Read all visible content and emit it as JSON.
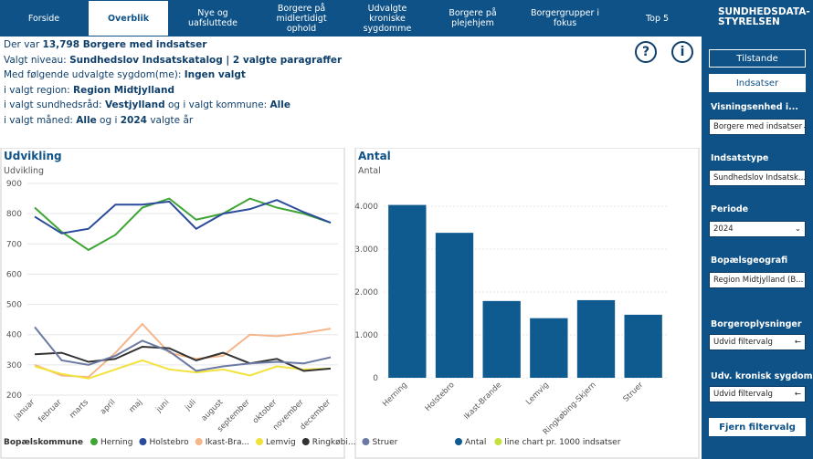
{
  "nav": {
    "tabs": [
      "Forside",
      "Overblik",
      "Nye og uafsluttede",
      "Borgere på midlertidigt ophold",
      "Udvalgte kroniske sygdomme",
      "Borgere på plejehjem",
      "Borgergrupper i fokus",
      "Top 5"
    ],
    "active": 1
  },
  "logo": {
    "line1": "SUNDHEDSDATA-",
    "line2": "STYRELSEN"
  },
  "info": {
    "lines": [
      [
        {
          "text": "Der var "
        },
        {
          "text": "13,798 Borgere med indsatser",
          "bold": true
        }
      ],
      [
        {
          "text": "Valgt niveau: "
        },
        {
          "text": "Sundhedslov Indsatskatalog | 2 valgte paragraffer",
          "bold": true
        }
      ],
      [
        {
          "text": "Med følgende udvalgte sygdom(me): "
        },
        {
          "text": "Ingen valgt",
          "bold": true
        }
      ],
      [
        {
          "text": "i valgt region: "
        },
        {
          "text": "Region Midtjylland",
          "bold": true
        }
      ],
      [
        {
          "text": "i valgt sundhedsråd: "
        },
        {
          "text": "Vestjylland",
          "bold": true
        },
        {
          "text": " og i valgt kommune: "
        },
        {
          "text": "Alle",
          "bold": true
        }
      ],
      [
        {
          "text": "i valgt måned: "
        },
        {
          "text": "Alle",
          "bold": true
        },
        {
          "text": " og i "
        },
        {
          "text": "2024",
          "bold": true
        },
        {
          "text": " valgte år"
        }
      ]
    ]
  },
  "icons": {
    "help": "?",
    "info": "i"
  },
  "sidebar": {
    "buttons": [
      "Tilstande",
      "Indsatser"
    ],
    "filters": [
      {
        "label": "Visningsenhed i...",
        "value": "Borgere med indsatser"
      },
      {
        "label": "Indsatstype",
        "value": "Sundhedslov Indsatsk..."
      },
      {
        "label": "Periode",
        "value": "2024"
      },
      {
        "label": "Bopælsgeografi",
        "value": "Region Midtjylland (B..."
      }
    ],
    "expanders": [
      {
        "label": "Borgeroplysninger",
        "value": "Udvid filtervalg"
      },
      {
        "label": "Udv. kronisk sygdom",
        "value": "Udvid filtervalg"
      }
    ],
    "reset": "Fjern filtervalg"
  },
  "chart_data": [
    {
      "type": "line",
      "title": "Udvikling",
      "subtitle": "Udvikling",
      "legend_title": "Bopælskommune",
      "categories": [
        "januar",
        "februar",
        "marts",
        "april",
        "maj",
        "juni",
        "juli",
        "august",
        "september",
        "oktober",
        "november",
        "december"
      ],
      "series": [
        {
          "name": "Herning",
          "color": "#3fa535",
          "values": [
            820,
            740,
            680,
            730,
            820,
            850,
            780,
            800,
            850,
            820,
            800,
            770
          ]
        },
        {
          "name": "Holstebro",
          "color": "#2b4c9b",
          "values": [
            790,
            735,
            750,
            830,
            830,
            840,
            750,
            800,
            815,
            845,
            805,
            770
          ]
        },
        {
          "name": "Ikast-Bra...",
          "color": "#f4b68a",
          "values": [
            300,
            265,
            260,
            340,
            435,
            340,
            320,
            330,
            400,
            395,
            405,
            420
          ]
        },
        {
          "name": "Lemvig",
          "color": "#f2e23c",
          "values": [
            295,
            270,
            255,
            285,
            315,
            285,
            275,
            285,
            265,
            295,
            285,
            288
          ]
        },
        {
          "name": "Ringkøbi...",
          "color": "#333333",
          "values": [
            335,
            340,
            310,
            320,
            360,
            355,
            315,
            340,
            305,
            320,
            280,
            288
          ]
        },
        {
          "name": "Struer",
          "color": "#6b7aa3",
          "values": [
            425,
            315,
            300,
            330,
            380,
            345,
            280,
            295,
            305,
            310,
            305,
            325
          ]
        }
      ],
      "ylim": [
        200,
        900
      ],
      "yticks": [
        200,
        300,
        400,
        500,
        600,
        700,
        800,
        900
      ],
      "grid": true
    },
    {
      "type": "bar",
      "title": "Antal",
      "subtitle": "Antal",
      "categories": [
        "Herning",
        "Holstebro",
        "Ikast-Brande",
        "Lemvig",
        "Ringkøbing-Skjern",
        "Struer"
      ],
      "series": [
        {
          "name": "Antal",
          "color": "#0f5a8e",
          "values": [
            4030,
            3380,
            1790,
            1390,
            1810,
            1470
          ]
        },
        {
          "name": "line chart pr. 1000 indsatser",
          "color": "#c8e03c",
          "values": [
            null,
            null,
            null,
            null,
            null,
            null
          ]
        }
      ],
      "ylim": [
        0,
        4500
      ],
      "yticks": [
        0,
        {
          "value": 1000,
          "label": "1.000"
        },
        {
          "value": 2000,
          "label": "2.000"
        },
        {
          "value": 3000,
          "label": "3.000"
        },
        {
          "value": 4000,
          "label": "4.000"
        }
      ],
      "grid": true
    }
  ]
}
